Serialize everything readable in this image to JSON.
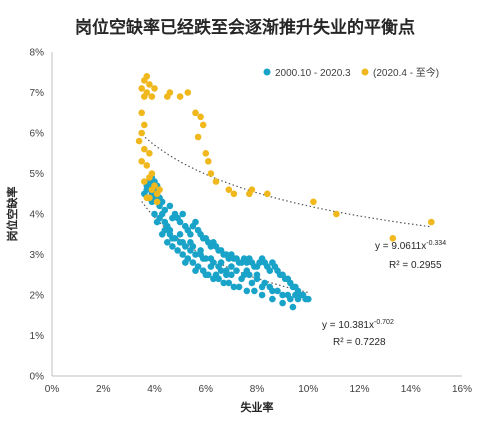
{
  "chart_data": {
    "type": "scatter",
    "title": "岗位空缺率已经跌至会逐渐推升失业的平衡点",
    "xlabel": "失业率",
    "ylabel": "岗位空缺率",
    "xlim": [
      0,
      16
    ],
    "ylim": [
      0,
      8
    ],
    "x_ticks": [
      "0%",
      "2%",
      "4%",
      "6%",
      "8%",
      "10%",
      "12%",
      "14%",
      "16%"
    ],
    "y_ticks": [
      "0%",
      "1%",
      "2%",
      "3%",
      "4%",
      "5%",
      "6%",
      "7%",
      "8%"
    ],
    "grid": "none",
    "legend_position": "top-right",
    "series": [
      {
        "name": "2000.10 - 2020.3",
        "color": "#1aa3c8",
        "points": [
          [
            3.6,
            4.5
          ],
          [
            3.7,
            4.6
          ],
          [
            3.8,
            4.7
          ],
          [
            3.9,
            4.5
          ],
          [
            4.0,
            4.4
          ],
          [
            3.9,
            4.3
          ],
          [
            4.0,
            4.6
          ],
          [
            4.1,
            4.5
          ],
          [
            3.8,
            4.4
          ],
          [
            4.2,
            4.2
          ],
          [
            4.3,
            4.0
          ],
          [
            4.2,
            3.9
          ],
          [
            4.4,
            3.8
          ],
          [
            4.5,
            3.7
          ],
          [
            4.6,
            3.6
          ],
          [
            4.7,
            3.9
          ],
          [
            4.8,
            4.0
          ],
          [
            4.9,
            3.9
          ],
          [
            5.0,
            3.8
          ],
          [
            5.1,
            4.0
          ],
          [
            5.2,
            3.7
          ],
          [
            5.3,
            3.6
          ],
          [
            5.4,
            3.5
          ],
          [
            5.5,
            3.7
          ],
          [
            5.6,
            3.8
          ],
          [
            5.7,
            3.6
          ],
          [
            5.8,
            3.5
          ],
          [
            5.9,
            3.4
          ],
          [
            6.0,
            3.4
          ],
          [
            6.1,
            3.3
          ],
          [
            6.2,
            3.2
          ],
          [
            6.3,
            3.3
          ],
          [
            6.4,
            3.2
          ],
          [
            6.5,
            3.1
          ],
          [
            6.6,
            3.1
          ],
          [
            6.7,
            3.0
          ],
          [
            6.8,
            3.0
          ],
          [
            6.9,
            2.9
          ],
          [
            7.0,
            3.0
          ],
          [
            7.1,
            2.9
          ],
          [
            7.2,
            2.9
          ],
          [
            7.3,
            2.8
          ],
          [
            7.4,
            2.8
          ],
          [
            7.5,
            2.9
          ],
          [
            7.6,
            2.8
          ],
          [
            7.7,
            2.9
          ],
          [
            7.8,
            2.8
          ],
          [
            7.9,
            2.7
          ],
          [
            8.0,
            2.7
          ],
          [
            8.1,
            2.8
          ],
          [
            8.2,
            2.9
          ],
          [
            8.3,
            2.8
          ],
          [
            8.4,
            2.7
          ],
          [
            8.5,
            2.6
          ],
          [
            8.6,
            2.8
          ],
          [
            8.7,
            2.7
          ],
          [
            8.8,
            2.6
          ],
          [
            8.9,
            2.5
          ],
          [
            9.0,
            2.5
          ],
          [
            9.1,
            2.4
          ],
          [
            9.2,
            2.4
          ],
          [
            9.3,
            2.3
          ],
          [
            9.4,
            2.2
          ],
          [
            9.5,
            2.2
          ],
          [
            9.6,
            2.1
          ],
          [
            9.7,
            2.0
          ],
          [
            9.8,
            2.0
          ],
          [
            9.9,
            1.9
          ],
          [
            10.0,
            1.9
          ],
          [
            9.5,
            2.0
          ],
          [
            9.3,
            1.9
          ],
          [
            9.0,
            2.0
          ],
          [
            8.8,
            2.1
          ],
          [
            8.5,
            2.2
          ],
          [
            8.3,
            2.3
          ],
          [
            8.0,
            2.4
          ],
          [
            7.7,
            2.5
          ],
          [
            7.5,
            2.5
          ],
          [
            7.2,
            2.6
          ],
          [
            7.0,
            2.7
          ],
          [
            6.8,
            2.6
          ],
          [
            6.5,
            2.7
          ],
          [
            6.3,
            2.8
          ],
          [
            6.0,
            2.9
          ],
          [
            5.8,
            3.0
          ],
          [
            5.6,
            3.0
          ],
          [
            5.4,
            3.1
          ],
          [
            5.2,
            3.2
          ],
          [
            5.0,
            3.3
          ],
          [
            4.8,
            3.4
          ],
          [
            4.6,
            3.5
          ],
          [
            4.4,
            3.6
          ],
          [
            4.3,
            3.5
          ],
          [
            4.5,
            3.3
          ],
          [
            4.7,
            3.2
          ],
          [
            4.9,
            3.1
          ],
          [
            5.1,
            3.0
          ],
          [
            5.3,
            2.9
          ],
          [
            5.5,
            2.8
          ],
          [
            5.7,
            2.7
          ],
          [
            5.9,
            2.6
          ],
          [
            6.1,
            2.5
          ],
          [
            6.3,
            2.4
          ],
          [
            6.5,
            2.4
          ],
          [
            6.7,
            2.3
          ],
          [
            6.9,
            2.3
          ],
          [
            7.1,
            2.2
          ],
          [
            7.3,
            2.2
          ],
          [
            7.6,
            2.1
          ],
          [
            7.9,
            2.1
          ],
          [
            8.2,
            2.0
          ],
          [
            8.6,
            1.9
          ],
          [
            9.0,
            1.8
          ],
          [
            9.4,
            1.7
          ],
          [
            4.1,
            3.8
          ],
          [
            4.0,
            4.0
          ],
          [
            4.2,
            4.4
          ],
          [
            4.4,
            4.1
          ],
          [
            4.6,
            4.2
          ],
          [
            5.0,
            3.5
          ],
          [
            5.4,
            3.3
          ],
          [
            5.8,
            3.1
          ],
          [
            6.2,
            2.9
          ],
          [
            6.6,
            2.8
          ],
          [
            5.2,
            2.8
          ],
          [
            5.6,
            2.6
          ],
          [
            6.0,
            2.5
          ],
          [
            6.4,
            2.5
          ],
          [
            6.8,
            2.5
          ],
          [
            3.7,
            4.7
          ],
          [
            3.8,
            4.8
          ],
          [
            3.9,
            4.9
          ],
          [
            4.0,
            4.8
          ],
          [
            4.1,
            4.7
          ],
          [
            4.3,
            4.3
          ],
          [
            4.7,
            3.4
          ],
          [
            5.1,
            3.3
          ],
          [
            5.5,
            3.2
          ],
          [
            5.9,
            2.9
          ],
          [
            6.2,
            2.7
          ],
          [
            6.6,
            2.6
          ],
          [
            7.0,
            2.5
          ],
          [
            7.4,
            2.4
          ],
          [
            7.8,
            2.3
          ],
          [
            8.2,
            2.2
          ],
          [
            8.6,
            2.1
          ],
          [
            9.2,
            2.0
          ],
          [
            9.6,
            1.9
          ],
          [
            7.6,
            2.6
          ],
          [
            8.0,
            2.5
          ]
        ]
      },
      {
        "name": "(2020.4 - 至今)",
        "color": "#f0b81c",
        "points": [
          [
            3.7,
            7.4
          ],
          [
            3.6,
            7.3
          ],
          [
            3.8,
            7.2
          ],
          [
            3.5,
            7.1
          ],
          [
            3.7,
            7.0
          ],
          [
            4.0,
            7.1
          ],
          [
            3.6,
            6.9
          ],
          [
            3.9,
            6.9
          ],
          [
            3.5,
            6.5
          ],
          [
            3.6,
            6.2
          ],
          [
            3.5,
            6.0
          ],
          [
            3.4,
            5.8
          ],
          [
            3.6,
            5.6
          ],
          [
            3.8,
            5.5
          ],
          [
            3.5,
            5.3
          ],
          [
            3.7,
            5.2
          ],
          [
            3.9,
            5.0
          ],
          [
            3.8,
            4.9
          ],
          [
            3.6,
            4.8
          ],
          [
            3.9,
            4.6
          ],
          [
            4.0,
            4.7
          ],
          [
            4.1,
            4.5
          ],
          [
            3.8,
            4.4
          ],
          [
            4.2,
            4.6
          ],
          [
            3.7,
            4.4
          ],
          [
            4.1,
            4.3
          ],
          [
            4.6,
            7.0
          ],
          [
            4.5,
            6.9
          ],
          [
            5.0,
            6.9
          ],
          [
            5.3,
            7.0
          ],
          [
            5.6,
            6.5
          ],
          [
            5.8,
            6.4
          ],
          [
            5.9,
            6.2
          ],
          [
            5.7,
            5.9
          ],
          [
            6.0,
            5.5
          ],
          [
            6.1,
            5.3
          ],
          [
            6.2,
            5.0
          ],
          [
            6.4,
            4.8
          ],
          [
            6.9,
            4.6
          ],
          [
            7.1,
            4.5
          ],
          [
            7.7,
            4.5
          ],
          [
            7.8,
            4.6
          ],
          [
            8.4,
            4.5
          ],
          [
            10.2,
            4.3
          ],
          [
            11.1,
            4.0
          ],
          [
            13.3,
            3.4
          ],
          [
            14.8,
            3.8
          ]
        ]
      }
    ],
    "trendlines": [
      {
        "series": "2000.10 - 2020.3",
        "a": 10.381,
        "b": -0.702,
        "x_range": [
          3.5,
          10.0
        ],
        "eq_base": "y = 10.381x",
        "eq_exp": "-0.702",
        "r2": "R² = 0.7228"
      },
      {
        "series": "(2020.4 - 至今)",
        "a": 9.0611,
        "b": -0.334,
        "x_range": [
          3.4,
          14.8
        ],
        "eq_base": "y = 9.0611x",
        "eq_exp": "-0.334",
        "r2": "R² = 0.2955"
      }
    ]
  }
}
